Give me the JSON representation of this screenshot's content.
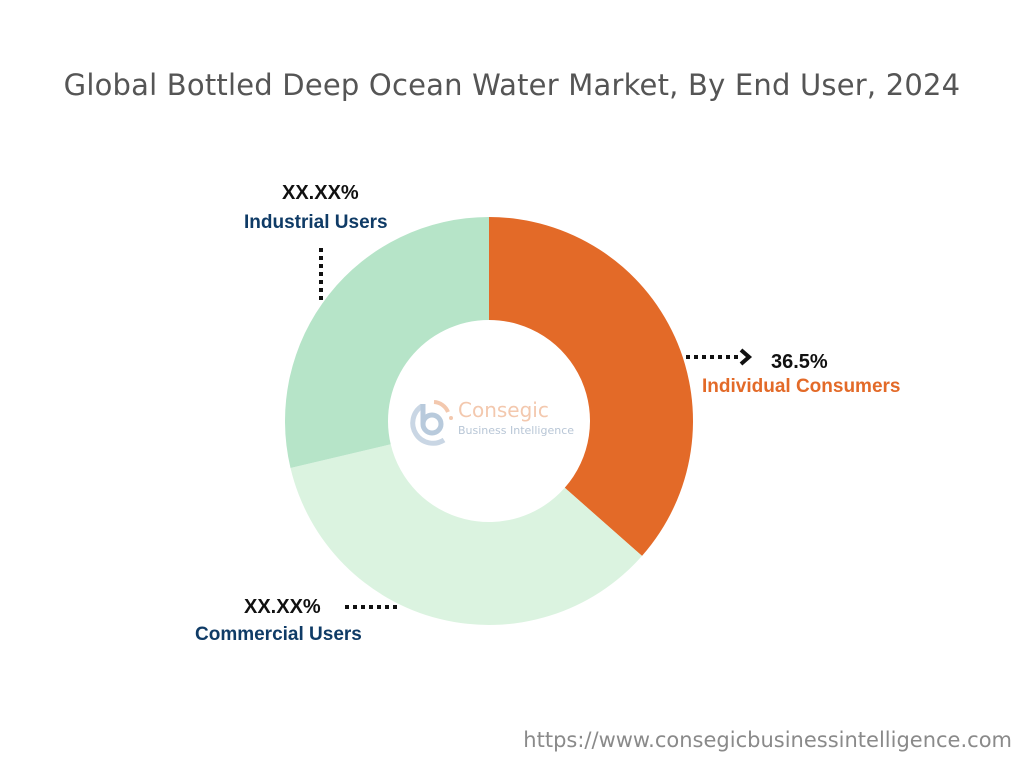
{
  "title": "Global Bottled Deep Ocean Water Market, By End User, 2024",
  "footer_url": "https://www.consegicbusinessintelligence.com",
  "watermark": {
    "name": "Consegic",
    "tagline": "Business Intelligence"
  },
  "labels": {
    "individual": {
      "pct": "36.5%",
      "name": "Individual Consumers"
    },
    "commercial": {
      "pct": "XX.XX%",
      "name": "Commercial Users"
    },
    "industrial": {
      "pct": "XX.XX%",
      "name": "Industrial Users"
    }
  },
  "colors": {
    "individual": "#e36a28",
    "commercial": "#dbf3e0",
    "industrial": "#b6e4c8",
    "label_dark": "#0f3b66",
    "label_orange": "#e36a28"
  },
  "chart_data": {
    "type": "pie",
    "subtype": "donut",
    "title": "Global Bottled Deep Ocean Water Market, By End User, 2024",
    "categories": [
      "Individual Consumers",
      "Commercial Users",
      "Industrial Users"
    ],
    "values": [
      36.5,
      34.8,
      28.7
    ],
    "value_labels": [
      "36.5%",
      "XX.XX%",
      "XX.XX%"
    ],
    "note": "Only Individual Consumers value is labeled (36.5%); others shown as XX.XX% and estimated from slice angles.",
    "start_angle": "12 o'clock, clockwise",
    "colors": [
      "#e36a28",
      "#dbf3e0",
      "#b6e4c8"
    ],
    "legend": "none (direct labels)"
  }
}
